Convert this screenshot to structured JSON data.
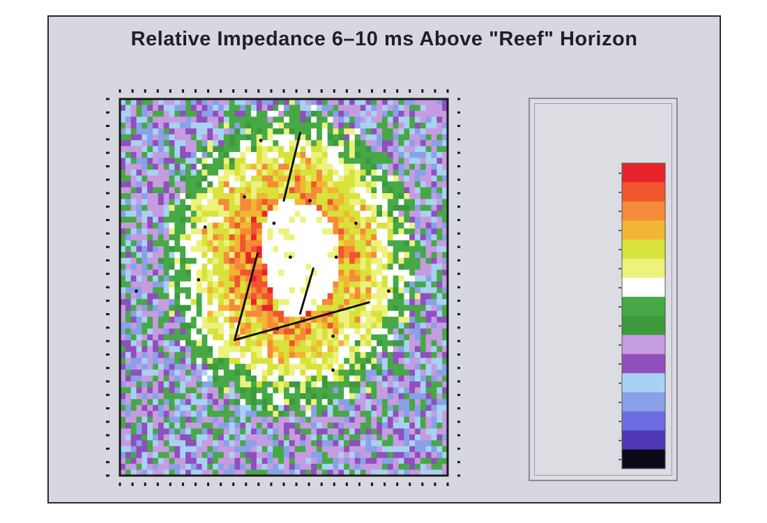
{
  "chart_data": {
    "type": "heatmap",
    "title": "Relative Impedance 6–10 ms Above \"Reef\" Horizon",
    "xlabel": "",
    "ylabel": "",
    "grid_cols": 60,
    "grid_rows": 64,
    "colorbar": {
      "title": "",
      "colors": [
        "#e8242a",
        "#f0562e",
        "#f58a38",
        "#f2b534",
        "#d8e23a",
        "#ecf27c",
        "#ffffff",
        "#47a846",
        "#3c9a3c",
        "#c69ce0",
        "#8f4fbd",
        "#a8d2f2",
        "#8aa0e8",
        "#6c6ce0",
        "#5037b5",
        "#0b0b18"
      ],
      "levels": [
        "",
        "",
        "",
        "",
        "",
        "",
        "",
        "",
        "",
        "",
        "",
        "",
        "",
        "",
        "",
        ""
      ]
    },
    "wells": [
      {
        "name": "",
        "x": 0.43,
        "y": 0.11
      },
      {
        "name": "",
        "x": 0.38,
        "y": 0.26
      },
      {
        "name": "",
        "x": 0.58,
        "y": 0.27
      },
      {
        "name": "",
        "x": 0.47,
        "y": 0.33
      },
      {
        "name": "",
        "x": 0.72,
        "y": 0.33
      },
      {
        "name": "",
        "x": 0.26,
        "y": 0.34
      },
      {
        "name": "",
        "x": 0.52,
        "y": 0.42
      },
      {
        "name": "",
        "x": 0.66,
        "y": 0.42
      },
      {
        "name": "",
        "x": 0.24,
        "y": 0.48
      },
      {
        "name": "",
        "x": 0.05,
        "y": 0.51
      },
      {
        "name": "",
        "x": 0.82,
        "y": 0.51
      },
      {
        "name": "",
        "x": 0.48,
        "y": 0.61
      },
      {
        "name": "",
        "x": 0.65,
        "y": 0.63
      },
      {
        "name": "",
        "x": 0.65,
        "y": 0.72
      }
    ],
    "faults": [
      [
        [
          0.55,
          0.09
        ],
        [
          0.5,
          0.27
        ]
      ],
      [
        [
          0.42,
          0.41
        ],
        [
          0.35,
          0.64
        ]
      ],
      [
        [
          0.35,
          0.64
        ],
        [
          0.76,
          0.54
        ]
      ],
      [
        [
          0.59,
          0.45
        ],
        [
          0.55,
          0.57
        ]
      ]
    ],
    "low_anomaly_polygon": [
      [
        0.49,
        0.27
      ],
      [
        0.6,
        0.28
      ],
      [
        0.66,
        0.36
      ],
      [
        0.67,
        0.46
      ],
      [
        0.63,
        0.53
      ],
      [
        0.56,
        0.58
      ],
      [
        0.5,
        0.57
      ],
      [
        0.45,
        0.49
      ],
      [
        0.43,
        0.38
      ],
      [
        0.45,
        0.3
      ]
    ]
  }
}
